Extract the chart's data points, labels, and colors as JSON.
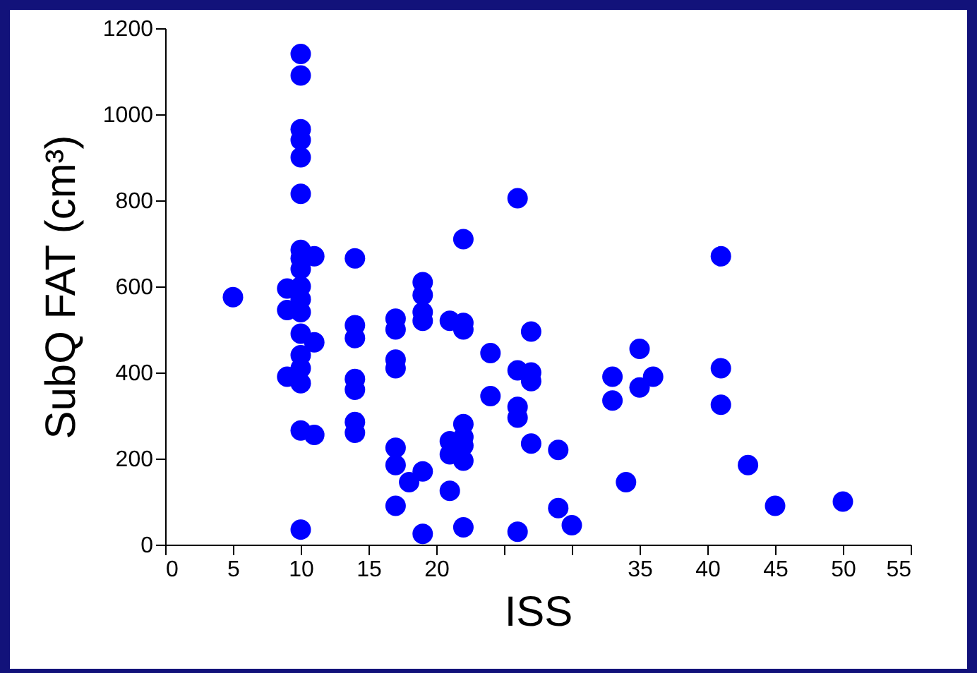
{
  "chart_data": {
    "type": "scatter",
    "xlabel": "ISS",
    "ylabel": "SubQ FAT (cm³)",
    "xlim": [
      0,
      55
    ],
    "ylim": [
      0,
      1200
    ],
    "xticks": [
      0,
      5,
      10,
      15,
      20,
      {
        "value": 25,
        "label": null
      },
      {
        "value": 30,
        "label": null
      },
      35,
      40,
      45,
      50,
      55
    ],
    "yticks": [
      0,
      200,
      400,
      600,
      800,
      1000,
      1200
    ],
    "grid": false,
    "marker": "circle",
    "series": [
      {
        "color": "#0000ff",
        "x": [
          5,
          9,
          9,
          9,
          10,
          10,
          10,
          10,
          10,
          10,
          10,
          10,
          10,
          10,
          10,
          10,
          10,
          10,
          10,
          10,
          10,
          10,
          11,
          11,
          11,
          14,
          14,
          14,
          14,
          14,
          14,
          14,
          17,
          17,
          17,
          17,
          17,
          17,
          17,
          18,
          19,
          19,
          19,
          19,
          19,
          19,
          21,
          21,
          21,
          21,
          22,
          22,
          22,
          22,
          22,
          22,
          22,
          22,
          24,
          24,
          26,
          26,
          26,
          26,
          26,
          27,
          27,
          27,
          27,
          29,
          29,
          30,
          33,
          33,
          34,
          35,
          35,
          36,
          41,
          41,
          41,
          43,
          45,
          50
        ],
        "values": [
          575,
          595,
          545,
          390,
          1140,
          1090,
          965,
          940,
          900,
          815,
          685,
          665,
          640,
          600,
          570,
          540,
          490,
          440,
          410,
          375,
          265,
          35,
          670,
          470,
          255,
          665,
          510,
          480,
          385,
          360,
          285,
          260,
          525,
          500,
          430,
          410,
          225,
          185,
          90,
          145,
          610,
          580,
          540,
          520,
          170,
          25,
          520,
          240,
          210,
          125,
          710,
          515,
          500,
          280,
          250,
          230,
          195,
          40,
          445,
          345,
          805,
          405,
          320,
          295,
          30,
          495,
          400,
          380,
          235,
          220,
          85,
          45,
          390,
          335,
          145,
          455,
          365,
          390,
          670,
          410,
          325,
          185,
          90,
          100
        ]
      }
    ]
  }
}
